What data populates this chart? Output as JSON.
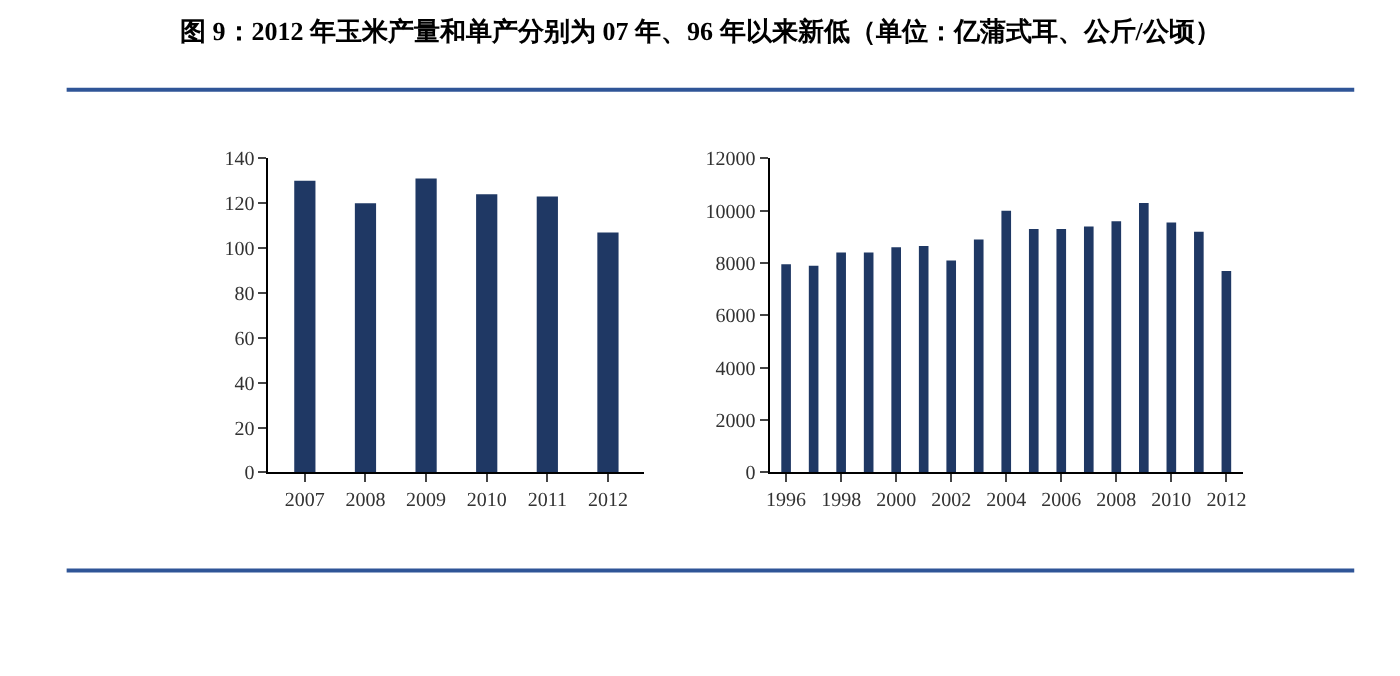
{
  "chart_data": [
    {
      "type": "bar",
      "title": "图 9：2012 年玉米产量和单产分别为 07 年、96 年以来新低（单位：亿蒲式耳、公斤/公顷）",
      "categories": [
        "2007",
        "2008",
        "2009",
        "2010",
        "2011",
        "2012"
      ],
      "values": [
        130,
        120,
        131,
        124,
        123,
        107
      ],
      "color": "#1f3864",
      "ylim": [
        0,
        140
      ],
      "yticks": [
        0,
        20,
        40,
        60,
        80,
        100,
        120,
        140
      ]
    },
    {
      "type": "bar",
      "categories": [
        "1996",
        null,
        "1998",
        null,
        "2000",
        null,
        "2002",
        null,
        "2004",
        null,
        "2006",
        null,
        "2008",
        null,
        "2010",
        null,
        "2012"
      ],
      "values": [
        7950,
        7900,
        8400,
        8400,
        8600,
        8650,
        8100,
        8900,
        10000,
        9300,
        9300,
        9400,
        9600,
        10300,
        9550,
        9200,
        7700
      ],
      "color": "#1f3864",
      "ylim": [
        0,
        12000
      ],
      "yticks": [
        0,
        2000,
        4000,
        6000,
        8000,
        10000,
        12000
      ]
    }
  ]
}
